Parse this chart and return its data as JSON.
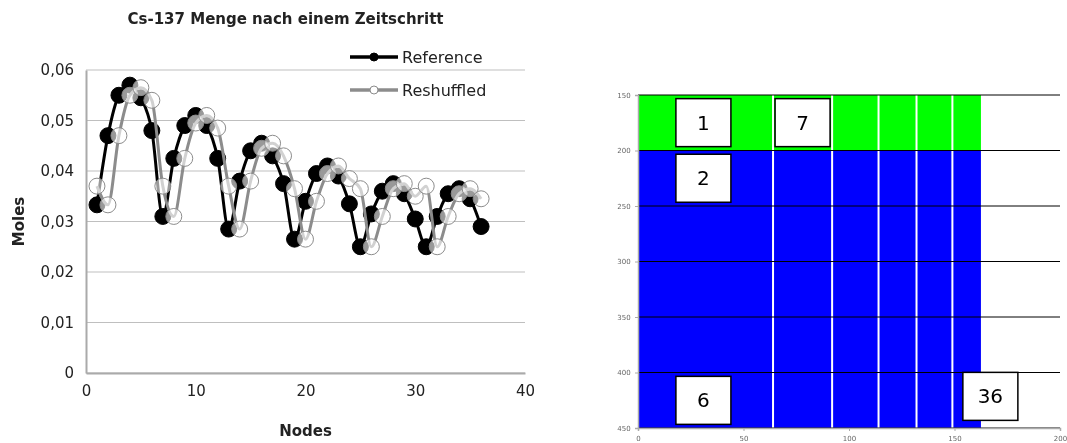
{
  "chart_data": [
    {
      "type": "line",
      "title": "Cs-137 Menge nach einem Zeitschritt",
      "xlabel": "Nodes",
      "ylabel": "Moles",
      "x": [
        1,
        2,
        3,
        4,
        5,
        6,
        7,
        8,
        9,
        10,
        11,
        12,
        13,
        14,
        15,
        16,
        17,
        18,
        19,
        20,
        21,
        22,
        23,
        24,
        25,
        26,
        27,
        28,
        29,
        30,
        31,
        32,
        33,
        34,
        35,
        36
      ],
      "series": [
        {
          "name": "Reference",
          "color": "#000000",
          "values": [
            0.0333,
            0.047,
            0.055,
            0.057,
            0.0545,
            0.048,
            0.031,
            0.0425,
            0.049,
            0.051,
            0.049,
            0.0425,
            0.0285,
            0.038,
            0.044,
            0.0455,
            0.043,
            0.0375,
            0.0265,
            0.034,
            0.0395,
            0.041,
            0.039,
            0.0335,
            0.025,
            0.0315,
            0.036,
            0.0375,
            0.0355,
            0.0305,
            0.025,
            0.031,
            0.0355,
            0.0365,
            0.0345,
            0.029
          ]
        },
        {
          "name": "Reshuffled",
          "color": "#8c8c8c",
          "values": [
            0.037,
            0.0333,
            0.047,
            0.055,
            0.0565,
            0.054,
            0.037,
            0.031,
            0.0425,
            0.0495,
            0.051,
            0.0485,
            0.037,
            0.0285,
            0.038,
            0.0445,
            0.0455,
            0.043,
            0.0365,
            0.0265,
            0.034,
            0.0395,
            0.041,
            0.0385,
            0.0365,
            0.025,
            0.031,
            0.0365,
            0.0375,
            0.035,
            0.037,
            0.025,
            0.031,
            0.0355,
            0.0365,
            0.0345
          ]
        }
      ],
      "xlim": [
        0,
        40
      ],
      "xticks": [
        0,
        10,
        20,
        30,
        40
      ],
      "ylim": [
        0,
        0.06
      ],
      "yticks": [
        0,
        {
          "value": 0.01,
          "label": "0,01"
        },
        {
          "value": 0.02,
          "label": "0,02"
        },
        {
          "value": 0.03,
          "label": "0,03"
        },
        {
          "value": 0.04,
          "label": "0,04"
        },
        {
          "value": 0.05,
          "label": "0,05"
        },
        {
          "value": 0.06,
          "label": "0,06"
        }
      ],
      "grid": "y",
      "legend": "top right",
      "marker": "circle",
      "line_style": "solid"
    },
    {
      "type": "bar",
      "x": [
        32,
        78,
        103,
        123,
        140.5,
        156
      ],
      "series": [
        {
          "color": "#00ff00",
          "values": [
            50,
            50,
            50,
            50,
            50,
            50
          ],
          "base": [
            150,
            150,
            150,
            150,
            150,
            150
          ]
        },
        {
          "color": "#0000ff",
          "values": [
            250,
            250,
            250,
            250,
            250,
            250
          ],
          "base": [
            200,
            200,
            200,
            200,
            200,
            200
          ]
        }
      ],
      "annotations": [
        "1",
        "2",
        "6",
        "7",
        "36"
      ],
      "xlim": [
        0,
        200
      ],
      "xticks": [
        0,
        50,
        100,
        150,
        200
      ],
      "ylim": [
        450,
        150
      ],
      "yticks": [
        150,
        200,
        250,
        300,
        350,
        400,
        450
      ],
      "grid": "y"
    }
  ]
}
